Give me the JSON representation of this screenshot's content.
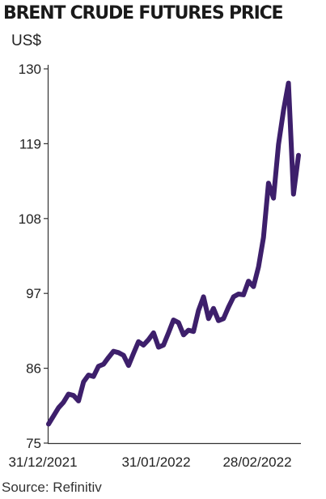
{
  "colors": {
    "line": "#3d1f6b",
    "axis": "#333333",
    "text": "#222222"
  },
  "chart_data": {
    "type": "line",
    "title": "BRENT CRUDE FUTURES PRICE",
    "ylabel": "US$",
    "ylim": [
      75,
      130
    ],
    "yticks": [
      75,
      86,
      97,
      108,
      119,
      130
    ],
    "xticks": [
      "31/12/2021",
      "31/01/2022",
      "28/02/2022"
    ],
    "source": "Source: Refinitiv",
    "grid": false,
    "series": [
      {
        "values": [
          77.8,
          79.0,
          80.2,
          81.0,
          82.2,
          82.0,
          81.2,
          84.0,
          85.0,
          84.8,
          86.3,
          86.6,
          87.6,
          88.5,
          88.3,
          87.9,
          86.4,
          88.2,
          89.9,
          89.4,
          90.2,
          91.2,
          89.1,
          89.4,
          91.2,
          93.1,
          92.7,
          90.9,
          91.6,
          91.4,
          94.5,
          96.5,
          93.3,
          94.8,
          93.0,
          93.3,
          95.0,
          96.5,
          96.9,
          96.8,
          98.8,
          98.0,
          100.9,
          105.2,
          113.2,
          111.0,
          118.9,
          123.9,
          127.9,
          111.6,
          117.3
        ]
      }
    ]
  }
}
